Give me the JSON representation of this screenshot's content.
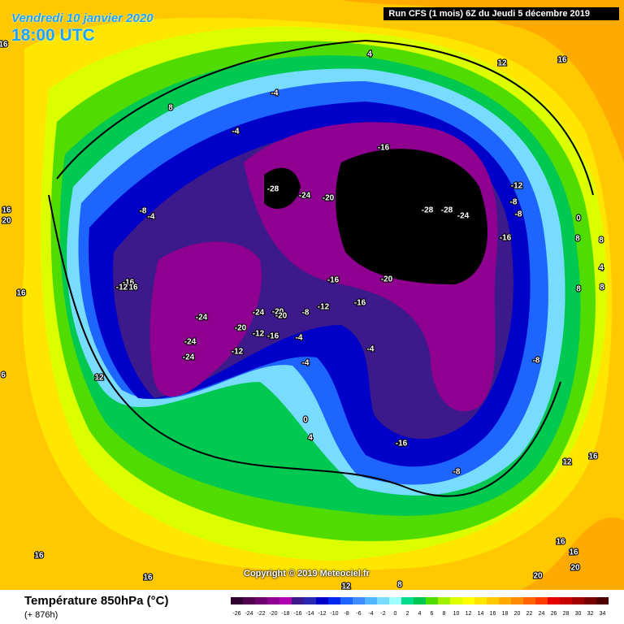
{
  "header": {
    "date": "Vendredi 10 janvier 2020",
    "time": "18:00 UTC",
    "run": "Run CFS (1 mois) 6Z du Jeudi 5 décembre 2019"
  },
  "copyright": "Copyright © 2019 Meteociel.fr",
  "footer": {
    "title": "Température 850hPa (°C)",
    "subtitle": "(+ 876h)"
  },
  "colorbar": {
    "ticks": [
      -26,
      -24,
      -22,
      -20,
      -18,
      -16,
      -14,
      -12,
      -10,
      -8,
      -6,
      -4,
      -2,
      0,
      2,
      4,
      6,
      8,
      10,
      12,
      14,
      16,
      18,
      20,
      22,
      24,
      26,
      28,
      30,
      32,
      34
    ],
    "colors": [
      "#300030",
      "#500050",
      "#700070",
      "#900090",
      "#b000b0",
      "#3c1a8c",
      "#2828b4",
      "#0000c8",
      "#0028f0",
      "#1e64ff",
      "#3c8cff",
      "#50b4ff",
      "#78dcff",
      "#a0ffff",
      "#00dc8c",
      "#00c850",
      "#50dc00",
      "#a0f000",
      "#dcff00",
      "#ffff00",
      "#ffe600",
      "#ffc800",
      "#ffaa00",
      "#ff8c00",
      "#ff6400",
      "#ff3c00",
      "#e60000",
      "#c80000",
      "#a00000",
      "#780000",
      "#500000"
    ]
  },
  "contour_labels": [
    "16",
    "8",
    "4",
    "12",
    "16",
    "-4",
    "-4",
    "-16",
    "-28",
    "-24",
    "-20",
    "-12",
    "-8",
    "-8",
    "0",
    "-8",
    "-4",
    "16",
    "20",
    "-28",
    "-28",
    "-24",
    "-16",
    "8",
    "8",
    "4",
    "8",
    "8",
    "-16",
    "-20",
    "-16",
    "-12",
    "16",
    "16",
    "-16",
    "-12",
    "-8",
    "-24",
    "-20",
    "-20",
    "-24",
    "-20",
    "-12",
    "-16",
    "-4",
    "-24",
    "-12",
    "-24",
    "-4",
    "-4",
    "-8",
    "6",
    "12",
    "0",
    "4",
    "-16",
    "12",
    "16",
    "-8",
    "16",
    "16",
    "16",
    "16",
    "20",
    "20",
    "12",
    "8"
  ]
}
